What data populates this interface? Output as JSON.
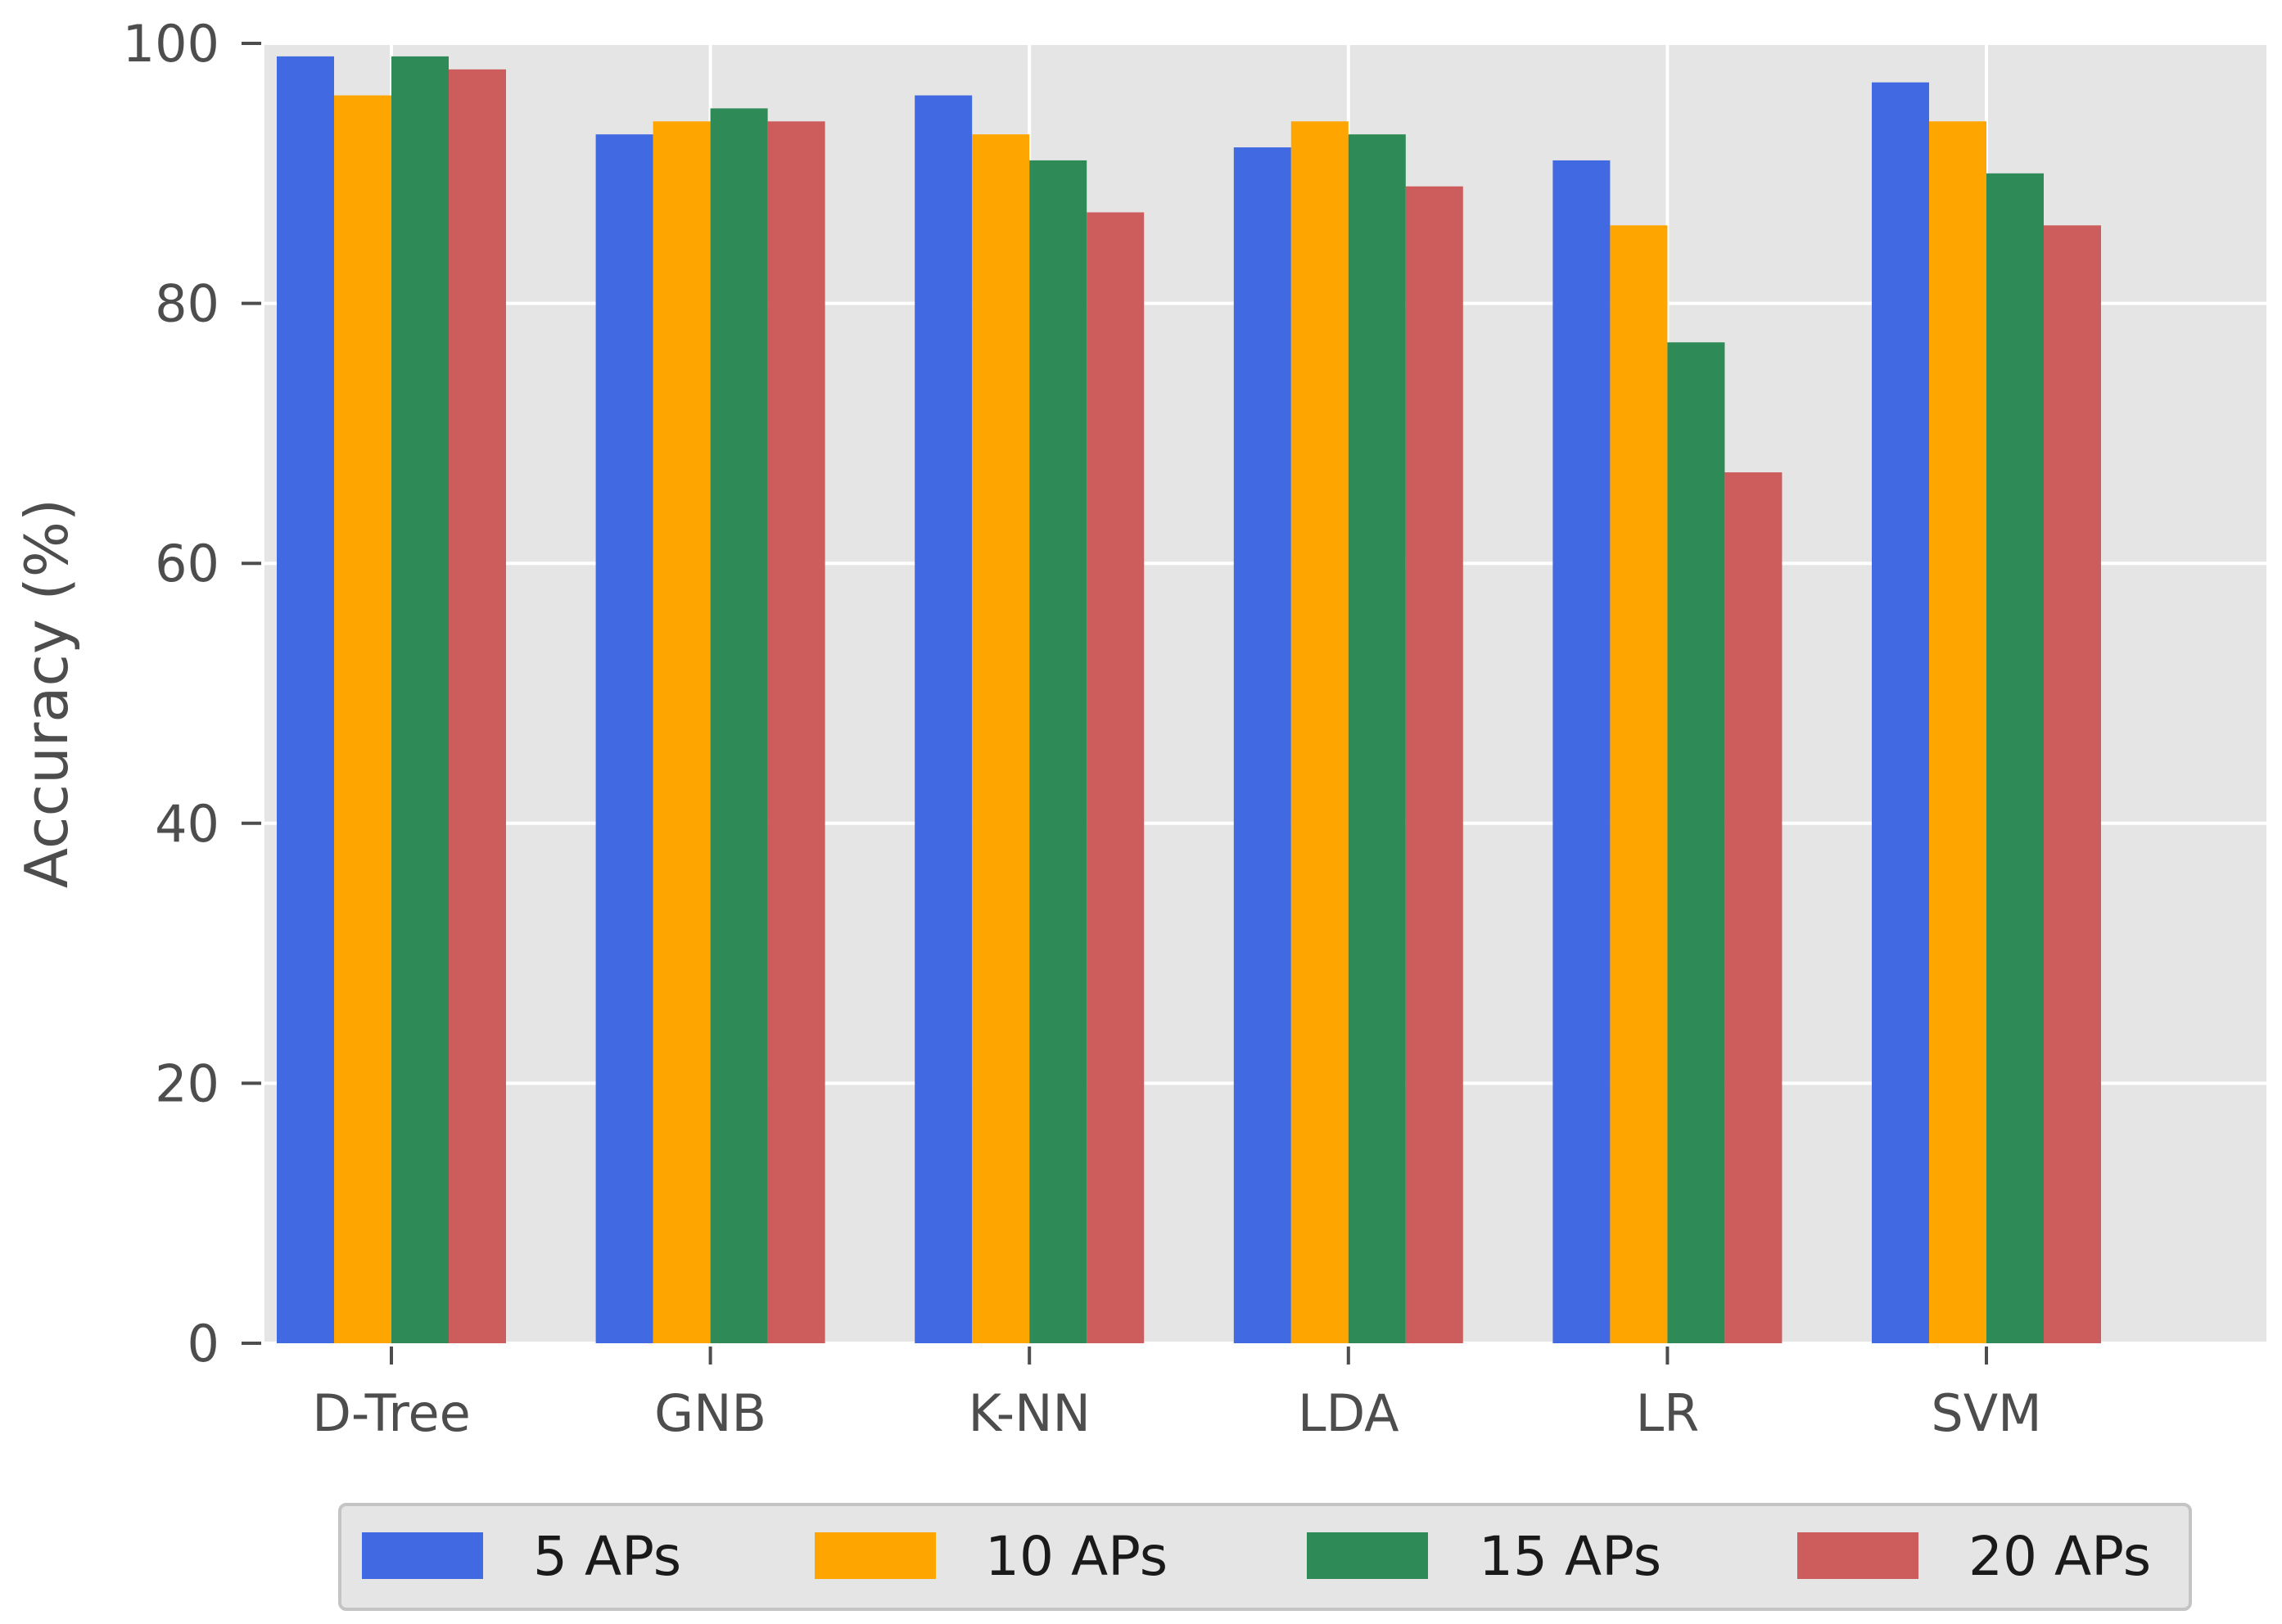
{
  "chart_data": {
    "type": "bar",
    "title": "",
    "xlabel": "",
    "ylabel": "Accuracy (%)",
    "ylim": [
      0,
      100
    ],
    "yticks": [
      0,
      20,
      40,
      60,
      80,
      100
    ],
    "grid": true,
    "legend_position": "bottom",
    "categories": [
      "D-Tree",
      "GNB",
      "K-NN",
      "LDA",
      "LR",
      "SVM"
    ],
    "series": [
      {
        "name": "5 APs",
        "color": "#4169e1",
        "values": [
          99,
          93,
          96,
          92,
          91,
          97
        ]
      },
      {
        "name": "10 APs",
        "color": "#ffa500",
        "values": [
          96,
          94,
          93,
          94,
          86,
          94
        ]
      },
      {
        "name": "15 APs",
        "color": "#2e8b57",
        "values": [
          99,
          95,
          91,
          93,
          77,
          90
        ]
      },
      {
        "name": "20 APs",
        "color": "#cd5c5c",
        "values": [
          98,
          94,
          87,
          89,
          67,
          86
        ]
      }
    ]
  }
}
